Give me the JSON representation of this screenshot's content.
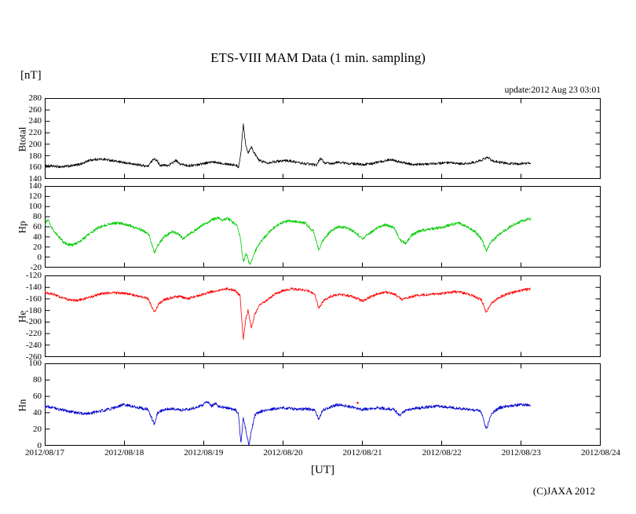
{
  "header": {
    "title": "ETS-VIII MAM Data (1 min. sampling)",
    "unit_label": "[nT]",
    "update_text": "update:2012 Aug 23 03:01"
  },
  "footer": {
    "xlabel": "[UT]",
    "copyright": "(C)JAXA 2012"
  },
  "chart_data": {
    "type": "line",
    "title": "ETS-VIII MAM Data (1 min. sampling)",
    "xlabel": "[UT]",
    "ylabel_unit": "[nT]",
    "grid": false,
    "legend": "none",
    "x_axis": {
      "range_days": [
        0,
        7
      ],
      "tick_labels": [
        "2012/08/17",
        "2012/08/18",
        "2012/08/19",
        "2012/08/20",
        "2012/08/21",
        "2012/08/22",
        "2012/08/23",
        "2012/08/24"
      ],
      "data_end_day": 6.12
    },
    "panels": [
      {
        "name": "Btotal",
        "color": "#000000",
        "ylim": [
          140,
          280
        ],
        "ytick_step": 20,
        "noise": 2.2,
        "points": [
          [
            0,
            163
          ],
          [
            0.1,
            162
          ],
          [
            0.2,
            161
          ],
          [
            0.3,
            162
          ],
          [
            0.4,
            164
          ],
          [
            0.5,
            168
          ],
          [
            0.55,
            172
          ],
          [
            0.65,
            174
          ],
          [
            0.75,
            174
          ],
          [
            0.85,
            172
          ],
          [
            0.95,
            169
          ],
          [
            1.05,
            167
          ],
          [
            1.15,
            165
          ],
          [
            1.25,
            163
          ],
          [
            1.3,
            162
          ],
          [
            1.38,
            176
          ],
          [
            1.42,
            170
          ],
          [
            1.45,
            164
          ],
          [
            1.55,
            163
          ],
          [
            1.6,
            167
          ],
          [
            1.65,
            172
          ],
          [
            1.7,
            166
          ],
          [
            1.8,
            163
          ],
          [
            1.9,
            164
          ],
          [
            2.0,
            167
          ],
          [
            2.1,
            169
          ],
          [
            2.2,
            168
          ],
          [
            2.3,
            166
          ],
          [
            2.4,
            164
          ],
          [
            2.44,
            161
          ],
          [
            2.47,
            185
          ],
          [
            2.5,
            235
          ],
          [
            2.53,
            200
          ],
          [
            2.56,
            185
          ],
          [
            2.6,
            196
          ],
          [
            2.65,
            182
          ],
          [
            2.7,
            172
          ],
          [
            2.8,
            168
          ],
          [
            2.9,
            170
          ],
          [
            3.0,
            172
          ],
          [
            3.1,
            171
          ],
          [
            3.2,
            168
          ],
          [
            3.3,
            166
          ],
          [
            3.42,
            164
          ],
          [
            3.47,
            176
          ],
          [
            3.52,
            168
          ],
          [
            3.6,
            166
          ],
          [
            3.7,
            169
          ],
          [
            3.8,
            167
          ],
          [
            3.9,
            166
          ],
          [
            4.0,
            165
          ],
          [
            4.1,
            166
          ],
          [
            4.2,
            169
          ],
          [
            4.3,
            172
          ],
          [
            4.38,
            174
          ],
          [
            4.45,
            170
          ],
          [
            4.55,
            167
          ],
          [
            4.65,
            165
          ],
          [
            4.75,
            165
          ],
          [
            4.85,
            166
          ],
          [
            4.95,
            167
          ],
          [
            5.05,
            168
          ],
          [
            5.15,
            167
          ],
          [
            5.25,
            166
          ],
          [
            5.35,
            167
          ],
          [
            5.45,
            170
          ],
          [
            5.52,
            174
          ],
          [
            5.58,
            177
          ],
          [
            5.65,
            171
          ],
          [
            5.75,
            168
          ],
          [
            5.85,
            167
          ],
          [
            5.95,
            166
          ],
          [
            6.05,
            167
          ],
          [
            6.12,
            168
          ]
        ]
      },
      {
        "name": "Hp",
        "color": "#00cc00",
        "ylim": [
          -20,
          140
        ],
        "ytick_step": 20,
        "noise": 2.8,
        "points": [
          [
            0,
            64
          ],
          [
            0.04,
            74
          ],
          [
            0.08,
            60
          ],
          [
            0.15,
            45
          ],
          [
            0.25,
            28
          ],
          [
            0.35,
            24
          ],
          [
            0.45,
            32
          ],
          [
            0.55,
            45
          ],
          [
            0.65,
            56
          ],
          [
            0.75,
            63
          ],
          [
            0.85,
            67
          ],
          [
            0.95,
            67
          ],
          [
            1.05,
            63
          ],
          [
            1.15,
            58
          ],
          [
            1.25,
            52
          ],
          [
            1.32,
            42
          ],
          [
            1.38,
            8
          ],
          [
            1.43,
            25
          ],
          [
            1.5,
            40
          ],
          [
            1.6,
            50
          ],
          [
            1.68,
            47
          ],
          [
            1.74,
            36
          ],
          [
            1.8,
            44
          ],
          [
            1.9,
            54
          ],
          [
            2.0,
            64
          ],
          [
            2.1,
            73
          ],
          [
            2.18,
            78
          ],
          [
            2.24,
            72
          ],
          [
            2.3,
            77
          ],
          [
            2.36,
            70
          ],
          [
            2.42,
            62
          ],
          [
            2.46,
            40
          ],
          [
            2.5,
            -8
          ],
          [
            2.54,
            8
          ],
          [
            2.58,
            -15
          ],
          [
            2.63,
            5
          ],
          [
            2.68,
            22
          ],
          [
            2.78,
            42
          ],
          [
            2.88,
            58
          ],
          [
            2.98,
            68
          ],
          [
            3.08,
            72
          ],
          [
            3.18,
            70
          ],
          [
            3.28,
            67
          ],
          [
            3.38,
            52
          ],
          [
            3.45,
            15
          ],
          [
            3.5,
            32
          ],
          [
            3.6,
            52
          ],
          [
            3.7,
            60
          ],
          [
            3.8,
            58
          ],
          [
            3.9,
            50
          ],
          [
            4.0,
            36
          ],
          [
            4.1,
            48
          ],
          [
            4.2,
            60
          ],
          [
            4.3,
            64
          ],
          [
            4.4,
            58
          ],
          [
            4.48,
            33
          ],
          [
            4.55,
            28
          ],
          [
            4.62,
            44
          ],
          [
            4.72,
            52
          ],
          [
            4.82,
            55
          ],
          [
            4.92,
            57
          ],
          [
            5.02,
            60
          ],
          [
            5.12,
            64
          ],
          [
            5.22,
            67
          ],
          [
            5.32,
            60
          ],
          [
            5.42,
            50
          ],
          [
            5.5,
            36
          ],
          [
            5.56,
            13
          ],
          [
            5.62,
            30
          ],
          [
            5.72,
            45
          ],
          [
            5.82,
            56
          ],
          [
            5.92,
            65
          ],
          [
            6.02,
            72
          ],
          [
            6.12,
            76
          ]
        ]
      },
      {
        "name": "He",
        "color": "#ff0000",
        "ylim": [
          -260,
          -120
        ],
        "ytick_step": 20,
        "noise": 2.2,
        "points": [
          [
            0,
            -149
          ],
          [
            0.1,
            -152
          ],
          [
            0.2,
            -157
          ],
          [
            0.3,
            -162
          ],
          [
            0.4,
            -163
          ],
          [
            0.5,
            -160
          ],
          [
            0.6,
            -156
          ],
          [
            0.7,
            -152
          ],
          [
            0.8,
            -150
          ],
          [
            0.9,
            -150
          ],
          [
            1.0,
            -151
          ],
          [
            1.1,
            -153
          ],
          [
            1.2,
            -156
          ],
          [
            1.3,
            -160
          ],
          [
            1.38,
            -183
          ],
          [
            1.44,
            -168
          ],
          [
            1.5,
            -162
          ],
          [
            1.6,
            -158
          ],
          [
            1.7,
            -156
          ],
          [
            1.8,
            -160
          ],
          [
            1.9,
            -156
          ],
          [
            2.0,
            -152
          ],
          [
            2.1,
            -148
          ],
          [
            2.2,
            -145
          ],
          [
            2.3,
            -143
          ],
          [
            2.4,
            -146
          ],
          [
            2.46,
            -155
          ],
          [
            2.5,
            -232
          ],
          [
            2.53,
            -195
          ],
          [
            2.56,
            -180
          ],
          [
            2.6,
            -210
          ],
          [
            2.65,
            -185
          ],
          [
            2.7,
            -172
          ],
          [
            2.8,
            -162
          ],
          [
            2.9,
            -152
          ],
          [
            3.0,
            -146
          ],
          [
            3.1,
            -143
          ],
          [
            3.2,
            -144
          ],
          [
            3.3,
            -146
          ],
          [
            3.4,
            -152
          ],
          [
            3.45,
            -176
          ],
          [
            3.52,
            -162
          ],
          [
            3.6,
            -156
          ],
          [
            3.7,
            -153
          ],
          [
            3.8,
            -154
          ],
          [
            3.9,
            -157
          ],
          [
            4.0,
            -164
          ],
          [
            4.1,
            -157
          ],
          [
            4.2,
            -151
          ],
          [
            4.3,
            -149
          ],
          [
            4.4,
            -152
          ],
          [
            4.5,
            -161
          ],
          [
            4.6,
            -157
          ],
          [
            4.7,
            -154
          ],
          [
            4.8,
            -153
          ],
          [
            4.9,
            -152
          ],
          [
            5.0,
            -151
          ],
          [
            5.1,
            -149
          ],
          [
            5.2,
            -148
          ],
          [
            5.3,
            -151
          ],
          [
            5.4,
            -155
          ],
          [
            5.5,
            -162
          ],
          [
            5.56,
            -184
          ],
          [
            5.62,
            -168
          ],
          [
            5.72,
            -158
          ],
          [
            5.82,
            -152
          ],
          [
            5.92,
            -148
          ],
          [
            6.02,
            -145
          ],
          [
            6.12,
            -143
          ]
        ]
      },
      {
        "name": "Hn",
        "color": "#0000cc",
        "ylim": [
          0,
          100
        ],
        "ytick_step": 20,
        "noise": 1.8,
        "points": [
          [
            0,
            48
          ],
          [
            0.1,
            46
          ],
          [
            0.2,
            44
          ],
          [
            0.3,
            42
          ],
          [
            0.4,
            40
          ],
          [
            0.5,
            39
          ],
          [
            0.6,
            40
          ],
          [
            0.7,
            42
          ],
          [
            0.8,
            44
          ],
          [
            0.9,
            47
          ],
          [
            1.0,
            50
          ],
          [
            1.1,
            48
          ],
          [
            1.2,
            46
          ],
          [
            1.3,
            44
          ],
          [
            1.38,
            26
          ],
          [
            1.42,
            40
          ],
          [
            1.5,
            44
          ],
          [
            1.6,
            45
          ],
          [
            1.7,
            43
          ],
          [
            1.8,
            44
          ],
          [
            1.9,
            46
          ],
          [
            2.0,
            50
          ],
          [
            2.05,
            54
          ],
          [
            2.1,
            48
          ],
          [
            2.15,
            52
          ],
          [
            2.2,
            47
          ],
          [
            2.3,
            46
          ],
          [
            2.4,
            44
          ],
          [
            2.44,
            38
          ],
          [
            2.47,
            2
          ],
          [
            2.5,
            34
          ],
          [
            2.53,
            20
          ],
          [
            2.57,
            0
          ],
          [
            2.6,
            18
          ],
          [
            2.65,
            38
          ],
          [
            2.7,
            41
          ],
          [
            2.8,
            43
          ],
          [
            2.9,
            45
          ],
          [
            3.0,
            46
          ],
          [
            3.1,
            45
          ],
          [
            3.2,
            44
          ],
          [
            3.3,
            45
          ],
          [
            3.4,
            43
          ],
          [
            3.45,
            32
          ],
          [
            3.5,
            43
          ],
          [
            3.6,
            47
          ],
          [
            3.7,
            50
          ],
          [
            3.8,
            48
          ],
          [
            3.9,
            46
          ],
          [
            4.0,
            44
          ],
          [
            4.1,
            45
          ],
          [
            4.2,
            46
          ],
          [
            4.3,
            45
          ],
          [
            4.4,
            44
          ],
          [
            4.47,
            37
          ],
          [
            4.55,
            43
          ],
          [
            4.65,
            45
          ],
          [
            4.75,
            46
          ],
          [
            4.85,
            47
          ],
          [
            4.95,
            48
          ],
          [
            5.05,
            47
          ],
          [
            5.15,
            46
          ],
          [
            5.25,
            45
          ],
          [
            5.35,
            44
          ],
          [
            5.45,
            43
          ],
          [
            5.5,
            40
          ],
          [
            5.56,
            20
          ],
          [
            5.62,
            38
          ],
          [
            5.72,
            46
          ],
          [
            5.82,
            48
          ],
          [
            5.92,
            49
          ],
          [
            6.02,
            50
          ],
          [
            6.12,
            49
          ]
        ]
      }
    ],
    "stray_points": [
      {
        "panel": 3,
        "x": 3.94,
        "y": 52,
        "color": "#ff0000"
      }
    ]
  }
}
